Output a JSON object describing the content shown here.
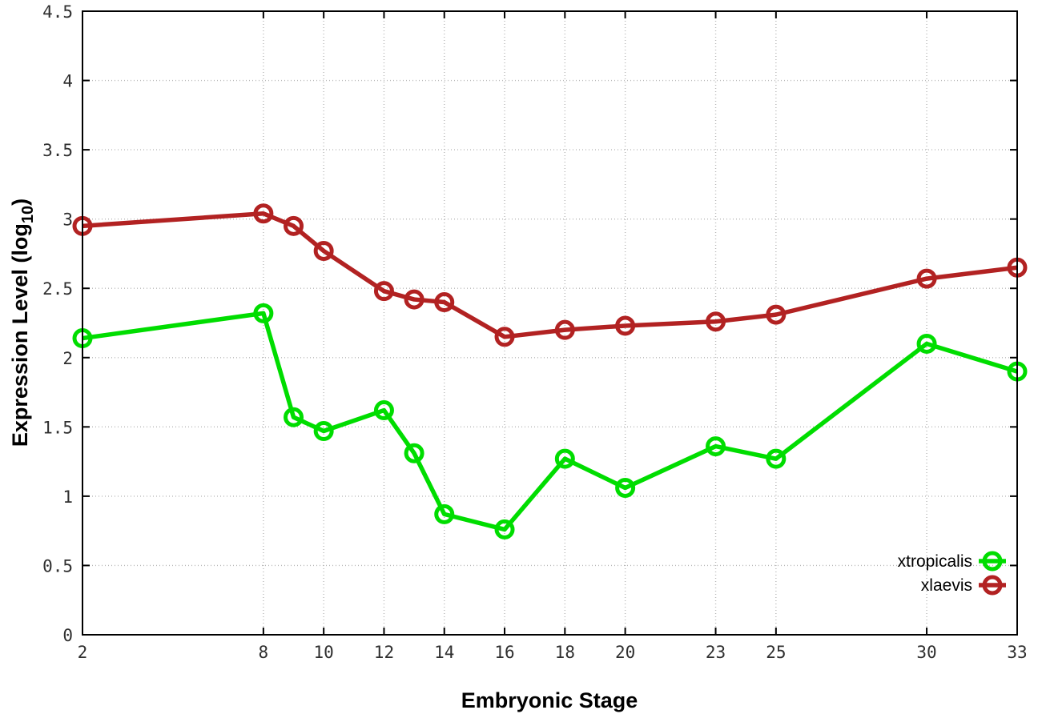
{
  "chart_data": {
    "type": "line",
    "title": "",
    "xlabel": "Embryonic Stage",
    "ylabel": {
      "prefix": "Expression Level (log",
      "sub": "10",
      "suffix": ")"
    },
    "x": [
      2,
      8,
      9,
      10,
      12,
      13,
      14,
      16,
      18,
      20,
      23,
      25,
      30,
      33
    ],
    "series": [
      {
        "name": "xtropicalis",
        "color": "#00dd00",
        "marker": "open-circle",
        "values": [
          2.14,
          2.32,
          1.57,
          1.47,
          1.62,
          1.31,
          0.87,
          0.76,
          1.27,
          1.06,
          1.36,
          1.27,
          2.1,
          1.9
        ]
      },
      {
        "name": "xlaevis",
        "color": "#b22222",
        "marker": "open-circle",
        "values": [
          2.95,
          3.04,
          2.95,
          2.77,
          2.48,
          2.42,
          2.4,
          2.15,
          2.2,
          2.23,
          2.26,
          2.31,
          2.57,
          2.65
        ]
      }
    ],
    "x_ticks": [
      2,
      8,
      10,
      12,
      14,
      16,
      18,
      20,
      23,
      25,
      30,
      33
    ],
    "x_tick_labels": [
      "2",
      "8",
      "10",
      "12",
      "14",
      "16",
      "18",
      "20",
      "23",
      "25",
      "30",
      "33"
    ],
    "y_ticks": [
      0,
      0.5,
      1,
      1.5,
      2,
      2.5,
      3,
      3.5,
      4,
      4.5
    ],
    "y_tick_labels": [
      "0",
      "0.5",
      "1",
      "1.5",
      "2",
      "2.5",
      "3",
      "3.5",
      "4",
      "4.5"
    ],
    "xlim": [
      2,
      33
    ],
    "ylim": [
      0,
      4.5
    ],
    "grid": true,
    "grid_style": "dotted",
    "legend_position": "bottom-right",
    "legend_entries": [
      "xtropicalis",
      "xlaevis"
    ]
  },
  "colors": {
    "background": "#ffffff",
    "axis": "#000000",
    "grid": "#b8b8b8",
    "tick_text": "#2f2f2f"
  }
}
